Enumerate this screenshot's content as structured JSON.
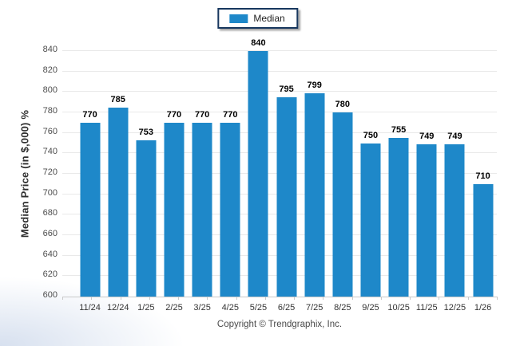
{
  "legend": {
    "label": "Median",
    "swatch_color": "#1e88c9",
    "border_color": "#17375e"
  },
  "footer": {
    "text": "Copyright © Trendgraphix, Inc."
  },
  "chart_data": {
    "type": "bar",
    "title": "",
    "xlabel": "",
    "ylabel": "Median Price (in $,000) %",
    "categories": [
      "11/24",
      "12/24",
      "1/25",
      "2/25",
      "3/25",
      "4/25",
      "5/25",
      "6/25",
      "7/25",
      "8/25",
      "9/25",
      "10/25",
      "11/25",
      "12/25",
      "1/26"
    ],
    "series": [
      {
        "name": "Median",
        "values": [
          770,
          785,
          753,
          770,
          770,
          770,
          840,
          795,
          799,
          780,
          750,
          755,
          749,
          749,
          710
        ]
      }
    ],
    "ylim": [
      600,
      840
    ],
    "yticks": [
      600,
      620,
      640,
      660,
      680,
      700,
      720,
      740,
      760,
      780,
      800,
      820,
      840
    ],
    "grid": true,
    "legend_position": "top-center",
    "bar_color": "#1e88c9",
    "value_labels": true
  }
}
